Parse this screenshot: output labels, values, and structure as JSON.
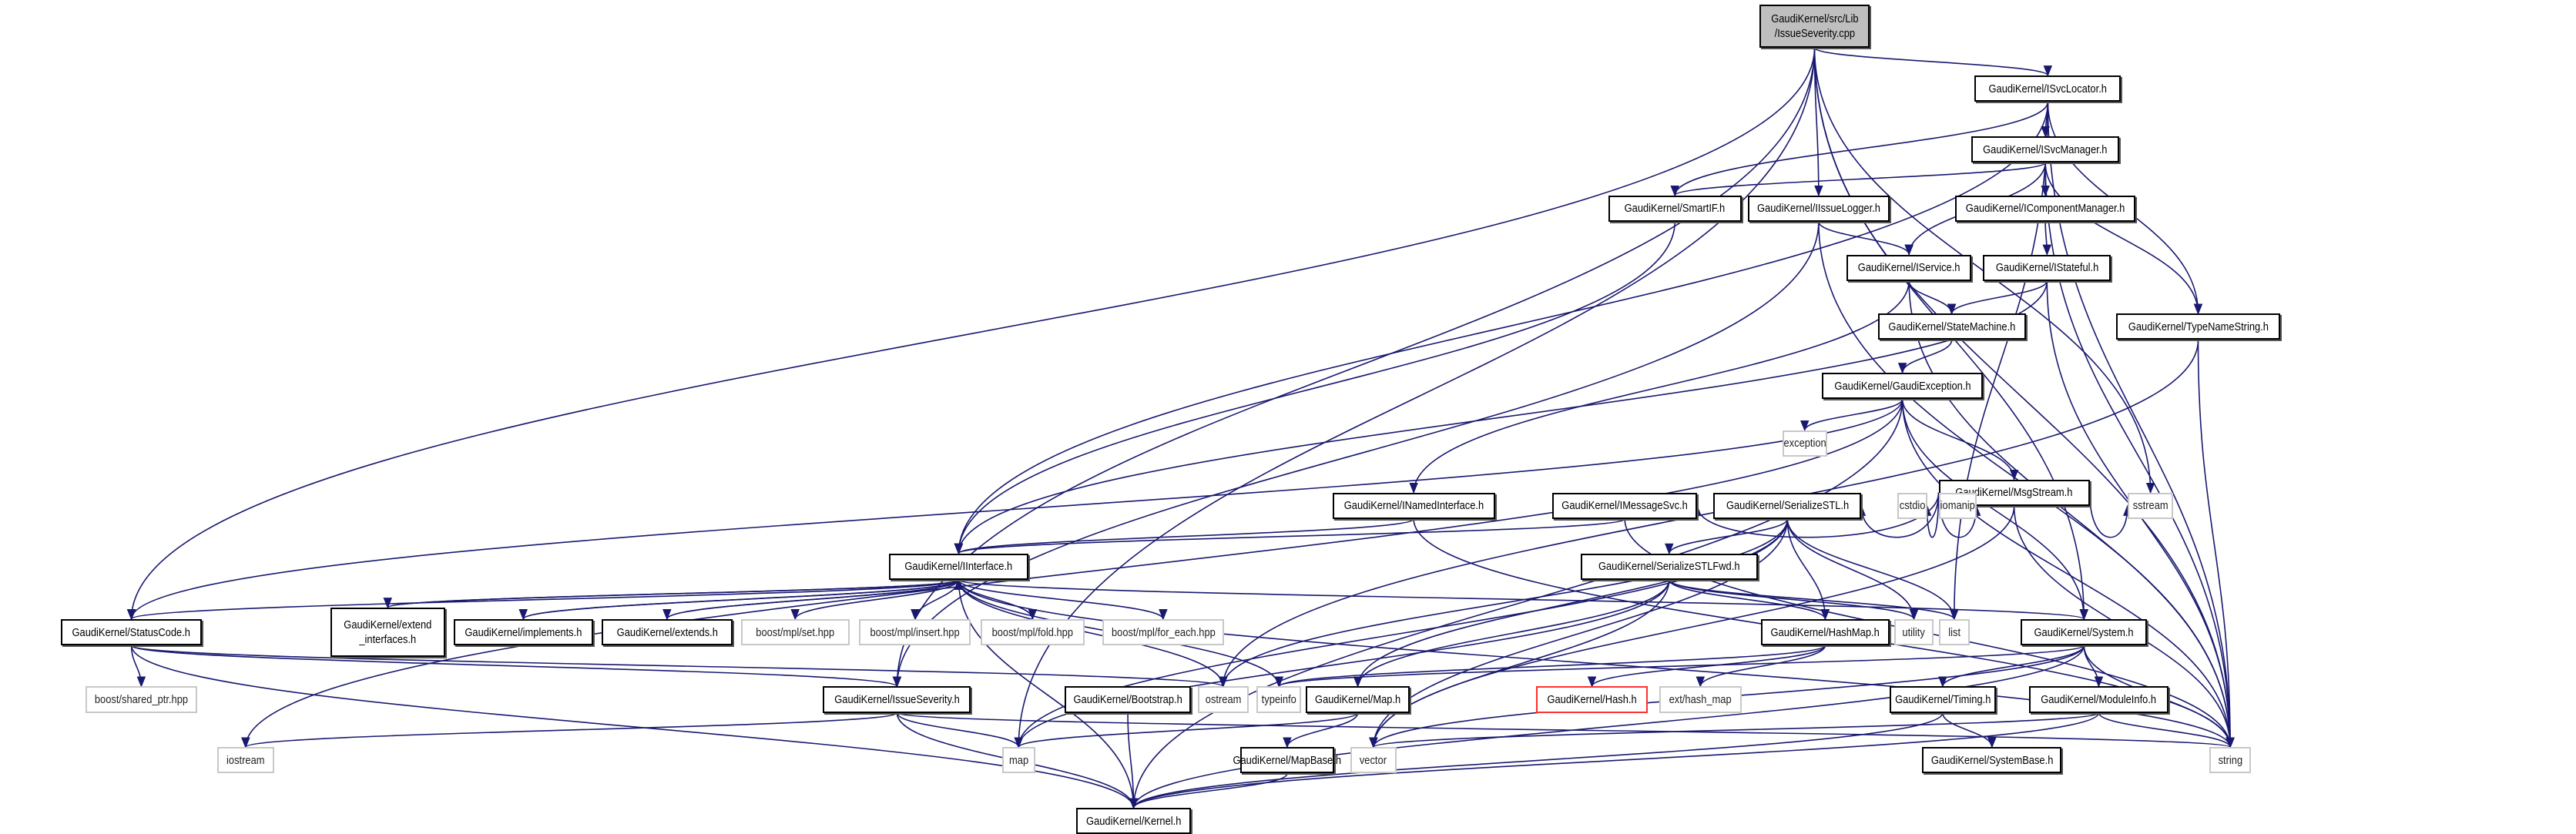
{
  "edge_color": "#191970",
  "nodes": [
    {
      "id": "root",
      "label": "GaudiKernel/src/Lib\n/IssueSeverity.cpp",
      "kind": "root"
    },
    {
      "id": "ISvcLocator",
      "label": "GaudiKernel/ISvcLocator.h",
      "kind": "project"
    },
    {
      "id": "ISvcManager",
      "label": "GaudiKernel/ISvcManager.h",
      "kind": "project"
    },
    {
      "id": "SmartIF",
      "label": "GaudiKernel/SmartIF.h",
      "kind": "project"
    },
    {
      "id": "IssueLogger",
      "label": "GaudiKernel/IIssueLogger.h",
      "kind": "project"
    },
    {
      "id": "IComponentManager",
      "label": "GaudiKernel/IComponentManager.h",
      "kind": "project"
    },
    {
      "id": "IService",
      "label": "GaudiKernel/IService.h",
      "kind": "project"
    },
    {
      "id": "IStateful",
      "label": "GaudiKernel/IStateful.h",
      "kind": "project"
    },
    {
      "id": "StateMachine",
      "label": "GaudiKernel/StateMachine.h",
      "kind": "project"
    },
    {
      "id": "TypeNameString",
      "label": "GaudiKernel/TypeNameString.h",
      "kind": "project"
    },
    {
      "id": "GaudiException",
      "label": "GaudiKernel/GaudiException.h",
      "kind": "project"
    },
    {
      "id": "exception",
      "label": "exception",
      "kind": "system"
    },
    {
      "id": "MsgStream",
      "label": "GaudiKernel/MsgStream.h",
      "kind": "project"
    },
    {
      "id": "INamedInterface",
      "label": "GaudiKernel/INamedInterface.h",
      "kind": "project"
    },
    {
      "id": "IMessageSvc",
      "label": "GaudiKernel/IMessageSvc.h",
      "kind": "project"
    },
    {
      "id": "SerializeSTL",
      "label": "GaudiKernel/SerializeSTL.h",
      "kind": "project"
    },
    {
      "id": "cstdio",
      "label": "cstdio",
      "kind": "system"
    },
    {
      "id": "iomanip",
      "label": "iomanip",
      "kind": "system"
    },
    {
      "id": "sstream",
      "label": "sstream",
      "kind": "system"
    },
    {
      "id": "IInterface",
      "label": "GaudiKernel/IInterface.h",
      "kind": "project"
    },
    {
      "id": "SerializeSTLFwd",
      "label": "GaudiKernel/SerializeSTLFwd.h",
      "kind": "project"
    },
    {
      "id": "StatusCode",
      "label": "GaudiKernel/StatusCode.h",
      "kind": "project"
    },
    {
      "id": "extend_interfaces",
      "label": "GaudiKernel/extend\n_interfaces.h",
      "kind": "project"
    },
    {
      "id": "implements",
      "label": "GaudiKernel/implements.h",
      "kind": "project"
    },
    {
      "id": "extends",
      "label": "GaudiKernel/extends.h",
      "kind": "project"
    },
    {
      "id": "mpl_set",
      "label": "boost/mpl/set.hpp",
      "kind": "system"
    },
    {
      "id": "mpl_insert",
      "label": "boost/mpl/insert.hpp",
      "kind": "system"
    },
    {
      "id": "mpl_fold",
      "label": "boost/mpl/fold.hpp",
      "kind": "system"
    },
    {
      "id": "mpl_for_each",
      "label": "boost/mpl/for_each.hpp",
      "kind": "system"
    },
    {
      "id": "HashMap",
      "label": "GaudiKernel/HashMap.h",
      "kind": "project"
    },
    {
      "id": "utility",
      "label": "utility",
      "kind": "system"
    },
    {
      "id": "list",
      "label": "list",
      "kind": "system"
    },
    {
      "id": "System",
      "label": "GaudiKernel/System.h",
      "kind": "project"
    },
    {
      "id": "shared_ptr",
      "label": "boost/shared_ptr.hpp",
      "kind": "system"
    },
    {
      "id": "IssueSeverity",
      "label": "GaudiKernel/IssueSeverity.h",
      "kind": "project"
    },
    {
      "id": "Bootstrap",
      "label": "GaudiKernel/Bootstrap.h",
      "kind": "project"
    },
    {
      "id": "ostream",
      "label": "ostream",
      "kind": "system"
    },
    {
      "id": "typeinfo",
      "label": "typeinfo",
      "kind": "system"
    },
    {
      "id": "Map",
      "label": "GaudiKernel/Map.h",
      "kind": "project"
    },
    {
      "id": "Hash",
      "label": "GaudiKernel/Hash.h",
      "kind": "missing"
    },
    {
      "id": "hash_map",
      "label": "ext/hash_map",
      "kind": "system"
    },
    {
      "id": "Timing",
      "label": "GaudiKernel/Timing.h",
      "kind": "project"
    },
    {
      "id": "ModuleInfo",
      "label": "GaudiKernel/ModuleInfo.h",
      "kind": "project"
    },
    {
      "id": "iostream",
      "label": "iostream",
      "kind": "system"
    },
    {
      "id": "map",
      "label": "map",
      "kind": "system"
    },
    {
      "id": "MapBase",
      "label": "GaudiKernel/MapBase.h",
      "kind": "project"
    },
    {
      "id": "vector",
      "label": "vector",
      "kind": "system"
    },
    {
      "id": "SystemBase",
      "label": "GaudiKernel/SystemBase.h",
      "kind": "project"
    },
    {
      "id": "string",
      "label": "string",
      "kind": "system"
    },
    {
      "id": "Kernel",
      "label": "GaudiKernel/Kernel.h",
      "kind": "project"
    }
  ],
  "edges": [
    [
      "root",
      "ISvcLocator"
    ],
    [
      "root",
      "IssueLogger"
    ],
    [
      "root",
      "StatusCode"
    ],
    [
      "root",
      "IssueSeverity"
    ],
    [
      "root",
      "map"
    ],
    [
      "root",
      "sstream"
    ],
    [
      "root",
      "System"
    ],
    [
      "root",
      "string"
    ],
    [
      "ISvcLocator",
      "ISvcManager"
    ],
    [
      "ISvcLocator",
      "SmartIF"
    ],
    [
      "ISvcLocator",
      "IInterface"
    ],
    [
      "ISvcLocator",
      "TypeNameString"
    ],
    [
      "ISvcLocator",
      "list"
    ],
    [
      "ISvcLocator",
      "string"
    ],
    [
      "ISvcManager",
      "SmartIF"
    ],
    [
      "ISvcManager",
      "IService"
    ],
    [
      "ISvcManager",
      "IComponentManager"
    ],
    [
      "ISvcManager",
      "TypeNameString"
    ],
    [
      "ISvcManager",
      "string"
    ],
    [
      "IComponentManager",
      "IStateful"
    ],
    [
      "IStateful",
      "StateMachine"
    ],
    [
      "IStateful",
      "IInterface"
    ],
    [
      "IStateful",
      "string"
    ],
    [
      "IssueLogger",
      "IService"
    ],
    [
      "IssueLogger",
      "IssueSeverity"
    ],
    [
      "IssueLogger",
      "string"
    ],
    [
      "IService",
      "StateMachine"
    ],
    [
      "IService",
      "INamedInterface"
    ],
    [
      "IService",
      "string"
    ],
    [
      "SmartIF",
      "IInterface"
    ],
    [
      "StateMachine",
      "GaudiException"
    ],
    [
      "TypeNameString",
      "ostream"
    ],
    [
      "TypeNameString",
      "string"
    ],
    [
      "GaudiException",
      "exception"
    ],
    [
      "GaudiException",
      "MsgStream"
    ],
    [
      "GaudiException",
      "StatusCode"
    ],
    [
      "GaudiException",
      "iostream"
    ],
    [
      "GaudiException",
      "Kernel"
    ],
    [
      "GaudiException",
      "System"
    ],
    [
      "GaudiException",
      "string"
    ],
    [
      "MsgStream",
      "IMessageSvc"
    ],
    [
      "MsgStream",
      "SerializeSTL"
    ],
    [
      "MsgStream",
      "cstdio"
    ],
    [
      "MsgStream",
      "iomanip"
    ],
    [
      "MsgStream",
      "sstream"
    ],
    [
      "MsgStream",
      "string"
    ],
    [
      "MsgStream",
      "vector"
    ],
    [
      "INamedInterface",
      "IInterface"
    ],
    [
      "INamedInterface",
      "string"
    ],
    [
      "IMessageSvc",
      "IInterface"
    ],
    [
      "IMessageSvc",
      "string"
    ],
    [
      "SerializeSTL",
      "SerializeSTLFwd"
    ],
    [
      "SerializeSTL",
      "HashMap"
    ],
    [
      "SerializeSTL",
      "Map"
    ],
    [
      "SerializeSTL",
      "utility"
    ],
    [
      "SerializeSTL",
      "list"
    ],
    [
      "SerializeSTL",
      "ostream"
    ],
    [
      "SerializeSTL",
      "vector"
    ],
    [
      "SerializeSTL",
      "map"
    ],
    [
      "SerializeSTLFwd",
      "HashMap"
    ],
    [
      "SerializeSTLFwd",
      "Map"
    ],
    [
      "SerializeSTLFwd",
      "list"
    ],
    [
      "SerializeSTLFwd",
      "utility"
    ],
    [
      "SerializeSTLFwd",
      "vector"
    ],
    [
      "SerializeSTLFwd",
      "map"
    ],
    [
      "IInterface",
      "StatusCode"
    ],
    [
      "IInterface",
      "extend_interfaces"
    ],
    [
      "IInterface",
      "implements"
    ],
    [
      "IInterface",
      "extends"
    ],
    [
      "IInterface",
      "mpl_set"
    ],
    [
      "IInterface",
      "mpl_insert"
    ],
    [
      "IInterface",
      "mpl_fold"
    ],
    [
      "IInterface",
      "mpl_for_each"
    ],
    [
      "IInterface",
      "Kernel"
    ],
    [
      "IInterface",
      "ostream"
    ],
    [
      "IInterface",
      "typeinfo"
    ],
    [
      "IInterface",
      "System"
    ],
    [
      "IInterface",
      "string"
    ],
    [
      "extend_interfaces",
      "IInterface"
    ],
    [
      "implements",
      "IInterface"
    ],
    [
      "extends",
      "IInterface"
    ],
    [
      "StatusCode",
      "shared_ptr"
    ],
    [
      "StatusCode",
      "IssueSeverity"
    ],
    [
      "StatusCode",
      "Kernel"
    ],
    [
      "StatusCode",
      "ostream"
    ],
    [
      "HashMap",
      "Hash"
    ],
    [
      "HashMap",
      "hash_map"
    ],
    [
      "HashMap",
      "typeinfo"
    ],
    [
      "System",
      "Timing"
    ],
    [
      "System",
      "ModuleInfo"
    ],
    [
      "System",
      "string"
    ],
    [
      "System",
      "vector"
    ],
    [
      "System",
      "Kernel"
    ],
    [
      "System",
      "typeinfo"
    ],
    [
      "IssueSeverity",
      "iostream"
    ],
    [
      "IssueSeverity",
      "map"
    ],
    [
      "IssueSeverity",
      "Kernel"
    ],
    [
      "IssueSeverity",
      "string"
    ],
    [
      "Bootstrap",
      "Kernel"
    ],
    [
      "Map",
      "MapBase"
    ],
    [
      "Map",
      "map"
    ],
    [
      "MapBase",
      "Kernel"
    ],
    [
      "Timing",
      "SystemBase"
    ],
    [
      "Timing",
      "Kernel"
    ],
    [
      "ModuleInfo",
      "vector"
    ],
    [
      "ModuleInfo",
      "string"
    ],
    [
      "ModuleInfo",
      "Kernel"
    ]
  ]
}
